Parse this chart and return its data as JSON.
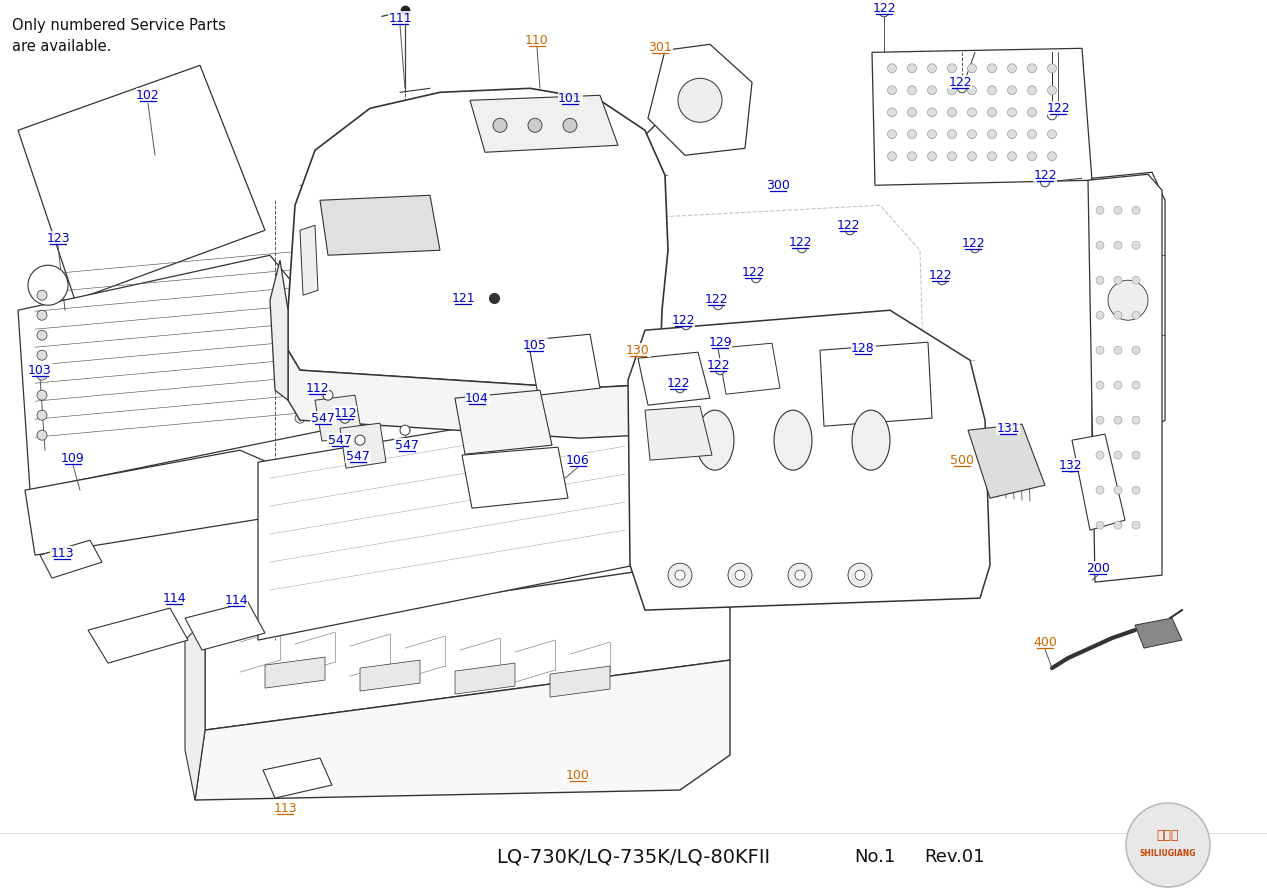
{
  "title": "LQ-730K/LQ-735K/LQ-80KFII",
  "subtitle_left": "Only numbered Service Parts\nare available.",
  "footer_no": "No.1",
  "footer_rev": "Rev.01",
  "bg_color": "#ffffff"
}
